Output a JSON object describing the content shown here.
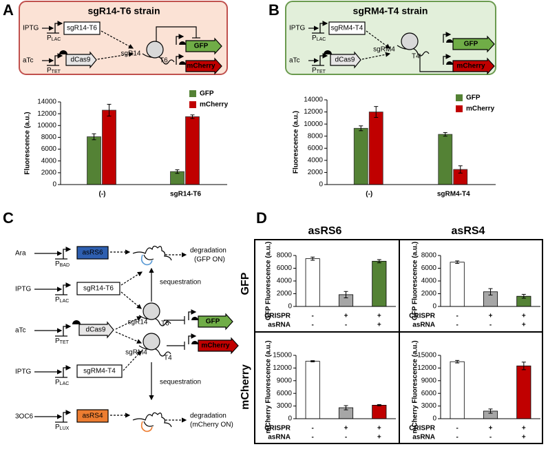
{
  "panels": [
    "A",
    "B",
    "C",
    "D"
  ],
  "panel_a": {
    "title": "sgR14-T6 strain",
    "inducers": [
      "IPTG",
      "aTc"
    ],
    "promoters": [
      {
        "p": "P",
        "sub": "LAC"
      },
      {
        "p": "P",
        "sub": "TET"
      }
    ],
    "genes": [
      "sgR14-T6",
      "dCas9"
    ],
    "rna": [
      "sgR14",
      "T6"
    ],
    "reporters": [
      "GFP",
      "mCherry"
    ]
  },
  "panel_b": {
    "title": "sgRM4-T4 strain",
    "inducers": [
      "IPTG",
      "aTc"
    ],
    "promoters": [
      {
        "p": "P",
        "sub": "LAC"
      },
      {
        "p": "P",
        "sub": "TET"
      }
    ],
    "genes": [
      "sgRM4-T4",
      "dCas9"
    ],
    "rna": [
      "sgRM4",
      "T4"
    ],
    "reporters": [
      "GFP",
      "mCherry"
    ]
  },
  "panel_c": {
    "inducers": [
      "Ara",
      "IPTG",
      "aTc",
      "IPTG",
      "3OC6"
    ],
    "promoters": [
      {
        "p": "P",
        "sub": "BAD"
      },
      {
        "p": "P",
        "sub": "LAC"
      },
      {
        "p": "P",
        "sub": "TET"
      },
      {
        "p": "P",
        "sub": "LAC"
      },
      {
        "p": "P",
        "sub": "LUX"
      }
    ],
    "genes": [
      "asRS6",
      "sgR14-T6",
      "dCas9",
      "sgRM4-T4",
      "asRS4"
    ],
    "rna": [
      "sgR14",
      "T6",
      "sgRM4",
      "T4"
    ],
    "reporters": [
      "GFP",
      "mCherry"
    ],
    "sequestration": [
      "sequestration",
      "sequestration"
    ],
    "outcomes": [
      [
        "degradation",
        "(GFP ON)"
      ],
      [
        "degradation",
        "(mCherry ON)"
      ]
    ]
  },
  "panel_d": {
    "columns": [
      "asRS6",
      "asRS4"
    ],
    "rows": [
      "GFP",
      "mCherry"
    ]
  },
  "chart_data": [
    {
      "type": "bar",
      "ylabel": "Fluorescence (a.u.)",
      "categories": [
        "(-)",
        "sgR14-T6"
      ],
      "ylim": [
        0,
        14000
      ],
      "yticks": [
        0,
        2000,
        4000,
        6000,
        8000,
        10000,
        12000,
        14000
      ],
      "series": [
        {
          "name": "GFP",
          "color": "#548235",
          "values": [
            8100,
            2200
          ],
          "errors": [
            500,
            300
          ]
        },
        {
          "name": "mCherry",
          "color": "#c00000",
          "values": [
            12600,
            11500
          ],
          "errors": [
            1000,
            300
          ]
        }
      ]
    },
    {
      "type": "bar",
      "ylabel": "Fluorescence (a.u.)",
      "categories": [
        "(-)",
        "sgRM4-T4"
      ],
      "ylim": [
        0,
        14000
      ],
      "yticks": [
        0,
        2000,
        4000,
        6000,
        8000,
        10000,
        12000,
        14000
      ],
      "series": [
        {
          "name": "GFP",
          "color": "#548235",
          "values": [
            9300,
            8300
          ],
          "errors": [
            400,
            300
          ]
        },
        {
          "name": "mCherry",
          "color": "#c00000",
          "values": [
            12000,
            2500
          ],
          "errors": [
            900,
            600
          ]
        }
      ]
    },
    {
      "type": "bar",
      "ylabel": "GFP Fluorescence (a.u.)",
      "ylim": [
        0,
        8000
      ],
      "yticks": [
        0,
        2000,
        4000,
        6000,
        8000
      ],
      "values": [
        7500,
        1850,
        7100
      ],
      "errors": [
        250,
        500,
        250
      ],
      "colors": [
        "#ffffff",
        "#a6a6a6",
        "#548235"
      ],
      "condition_rows": [
        {
          "label": "CRISPR",
          "marks": [
            "-",
            "+",
            "+"
          ]
        },
        {
          "label": "asRNA",
          "marks": [
            "-",
            "-",
            "+"
          ]
        }
      ]
    },
    {
      "type": "bar",
      "ylabel": "GFP Fluorescence (a.u.)",
      "ylim": [
        0,
        8000
      ],
      "yticks": [
        0,
        2000,
        4000,
        6000,
        8000
      ],
      "values": [
        6950,
        2300,
        1600
      ],
      "errors": [
        200,
        500,
        300
      ],
      "colors": [
        "#ffffff",
        "#a6a6a6",
        "#548235"
      ],
      "condition_rows": [
        {
          "label": "CRISPR",
          "marks": [
            "-",
            "+",
            "+"
          ]
        },
        {
          "label": "asRNA",
          "marks": [
            "-",
            "-",
            "+"
          ]
        }
      ]
    },
    {
      "type": "bar",
      "ylabel": "mCherry Fluorescence (a.u.)",
      "ylim": [
        0,
        15000
      ],
      "yticks": [
        0,
        3000,
        6000,
        9000,
        12000,
        15000
      ],
      "values": [
        13600,
        2600,
        3200
      ],
      "errors": [
        150,
        500,
        150
      ],
      "colors": [
        "#ffffff",
        "#a6a6a6",
        "#c00000"
      ],
      "condition_rows": [
        {
          "label": "CRISPR",
          "marks": [
            "-",
            "+",
            "+"
          ]
        },
        {
          "label": "asRNA",
          "marks": [
            "-",
            "-",
            "+"
          ]
        }
      ]
    },
    {
      "type": "bar",
      "ylabel": "mCherry Fluorescence (a.u.)",
      "ylim": [
        0,
        15000
      ],
      "yticks": [
        0,
        3000,
        6000,
        9000,
        12000,
        15000
      ],
      "values": [
        13500,
        1800,
        12500
      ],
      "errors": [
        300,
        500,
        900
      ],
      "colors": [
        "#ffffff",
        "#a6a6a6",
        "#c00000"
      ],
      "condition_rows": [
        {
          "label": "CRISPR",
          "marks": [
            "-",
            "+",
            "+"
          ]
        },
        {
          "label": "asRNA",
          "marks": [
            "-",
            "-",
            "+"
          ]
        }
      ]
    }
  ]
}
